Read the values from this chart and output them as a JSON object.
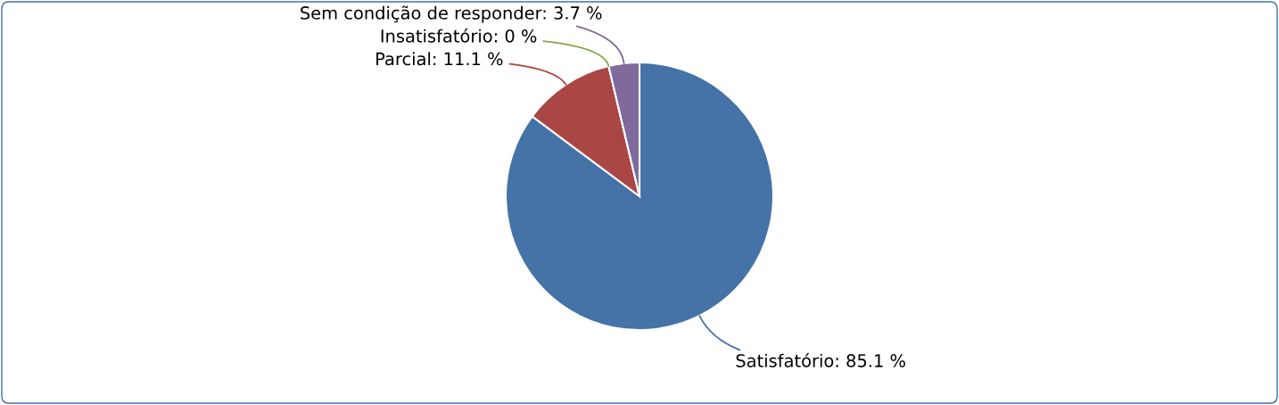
{
  "chart_data": {
    "type": "pie",
    "categories": [
      "Satisfatório",
      "Parcial",
      "Insatisfatório",
      "Sem condição de responder"
    ],
    "values": [
      85.1,
      11.1,
      0,
      3.7
    ],
    "colors": [
      "#4572a7",
      "#aa4643",
      "#89a54e",
      "#80699b"
    ],
    "value_labels": [
      ": 85.1 %",
      ": 11.1 %",
      ": 0 %",
      ": 3.7 %"
    ],
    "legend": false
  }
}
